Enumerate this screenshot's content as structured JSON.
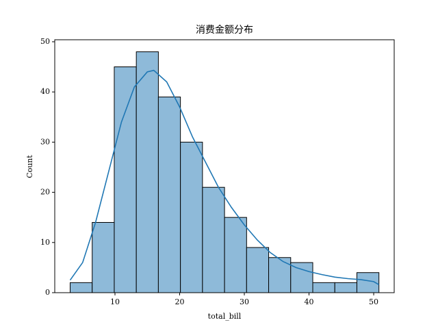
{
  "chart_data": {
    "type": "histogram",
    "title": "消费金额分布",
    "x_label": "total_bill",
    "y_label": "Count",
    "bins": [
      3.07,
      6.48,
      9.89,
      13.3,
      16.71,
      20.12,
      23.53,
      26.94,
      30.35,
      33.76,
      37.17,
      40.58,
      43.99,
      47.4,
      50.81
    ],
    "values": [
      2,
      14,
      45,
      48,
      39,
      30,
      21,
      15,
      9,
      7,
      6,
      2,
      2,
      4
    ],
    "color": "#8ebad9",
    "edge_color": "#000000",
    "kde": {
      "color": "#1f77b4",
      "x": [
        3.07,
        5,
        7,
        9,
        11,
        13,
        15,
        16,
        18,
        20,
        22,
        24,
        26,
        28,
        30,
        32,
        34,
        36,
        38,
        40,
        42,
        44,
        46,
        48,
        50,
        50.81
      ],
      "values": [
        2.5,
        6,
        14,
        24,
        34,
        41,
        44,
        44.3,
        42,
        37,
        31,
        26,
        21,
        17,
        13.5,
        10.5,
        8,
        6.2,
        5,
        4.2,
        3.6,
        3.1,
        2.8,
        2.6,
        2.2,
        1.6
      ]
    },
    "xlim": [
      0.69,
      53.17
    ],
    "ylim": [
      0,
      50.4
    ],
    "xticks": [
      10,
      20,
      30,
      40,
      50
    ],
    "yticks": [
      0,
      10,
      20,
      30,
      40,
      50
    ]
  }
}
